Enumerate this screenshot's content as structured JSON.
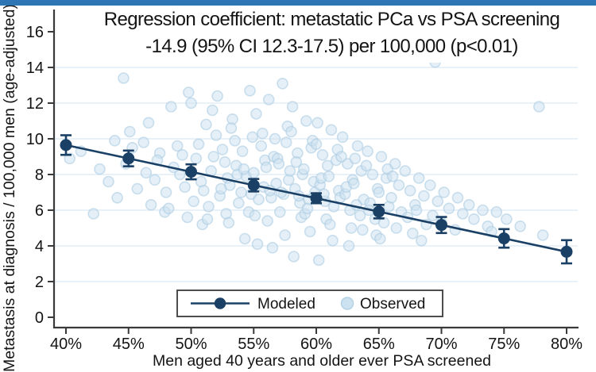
{
  "page": {
    "top_bar_color": "#2e75b6",
    "background": "#ffffff"
  },
  "title": {
    "line1": "Regression coefficient: metastatic PCa vs PSA screening",
    "line2": "-14.9 (95% CI 12.3-17.5) per 100,000 (p<0.01)"
  },
  "chart_data": {
    "type": "scatter",
    "title": "Regression coefficient: metastatic PCa vs PSA screening -14.9 (95% CI 12.3-17.5) per 100,000 (p<0.01)",
    "xlabel": "Men aged 40 years and older ever PSA screened",
    "ylabel": "Metastasis at diagnosis / 100,000 men (age-adjusted)",
    "x_tick_values": [
      40,
      45,
      50,
      55,
      60,
      65,
      70,
      75,
      80
    ],
    "x_tick_labels": [
      "40%",
      "45%",
      "50%",
      "55%",
      "60%",
      "65%",
      "70%",
      "75%",
      "80%"
    ],
    "y_ticks": [
      0,
      2,
      4,
      6,
      8,
      10,
      12,
      14,
      16
    ],
    "gridline_values": [
      2,
      4,
      6,
      8,
      10,
      12,
      14
    ],
    "xlim": [
      40,
      80
    ],
    "ylim": [
      0,
      16
    ],
    "grid": true,
    "legend": {
      "position": "bottom-center",
      "modeled_label": "Modeled",
      "observed_label": "Observed"
    },
    "colors": {
      "modeled": "#1b4065",
      "observed_fill": "#cde2f0",
      "observed_stroke": "#a6c9e0",
      "gridline": "#e4eef7",
      "axis": "#3a3a3a",
      "tick_label": "#141414"
    },
    "series": [
      {
        "name": "Modeled",
        "type": "line_with_error_bars",
        "x": [
          40,
          45,
          50,
          55,
          60,
          65,
          70,
          75,
          80
        ],
        "y": [
          9.65,
          8.9,
          8.15,
          7.4,
          6.67,
          5.92,
          5.17,
          4.42,
          3.67
        ],
        "ci_low": [
          9.1,
          8.46,
          7.73,
          7.05,
          6.39,
          5.54,
          4.72,
          3.9,
          3.02
        ],
        "ci_high": [
          10.2,
          9.34,
          8.57,
          7.75,
          6.95,
          6.3,
          5.62,
          4.94,
          4.32
        ]
      },
      {
        "name": "Observed",
        "type": "scatter",
        "points": [
          [
            40.3,
            8.9
          ],
          [
            41.2,
            9.3
          ],
          [
            42.2,
            5.8
          ],
          [
            42.7,
            8.3
          ],
          [
            43.4,
            7.6
          ],
          [
            43.9,
            9.9
          ],
          [
            44.6,
            13.4
          ],
          [
            44.1,
            6.7
          ],
          [
            44.8,
            8.6
          ],
          [
            45.3,
            9.5
          ],
          [
            45.7,
            7.2
          ],
          [
            45.1,
            10.4
          ],
          [
            46.4,
            8.1
          ],
          [
            46.8,
            6.3
          ],
          [
            46.2,
            9.8
          ],
          [
            46.6,
            10.9
          ],
          [
            47.1,
            7.7
          ],
          [
            47.5,
            9.2
          ],
          [
            47.9,
            5.9
          ],
          [
            47.3,
            8.8
          ],
          [
            48.4,
            11.8
          ],
          [
            48.0,
            7.0
          ],
          [
            48.6,
            8.4
          ],
          [
            48.9,
            9.6
          ],
          [
            48.2,
            6.1
          ],
          [
            49.8,
            12.6
          ],
          [
            49.1,
            8.0
          ],
          [
            49.5,
            7.3
          ],
          [
            49.3,
            9.1
          ],
          [
            49.7,
            5.6
          ],
          [
            50.0,
            12.0
          ],
          [
            50.4,
            8.9
          ],
          [
            50.8,
            7.6
          ],
          [
            50.2,
            6.5
          ],
          [
            50.6,
            9.7
          ],
          [
            50.9,
            5.2
          ],
          [
            51.2,
            10.8
          ],
          [
            51.6,
            8.2
          ],
          [
            51.0,
            7.1
          ],
          [
            51.8,
            9.0
          ],
          [
            51.4,
            6.2
          ],
          [
            51.7,
            11.6
          ],
          [
            51.3,
            5.5
          ],
          [
            52.1,
            12.4
          ],
          [
            52.5,
            9.4
          ],
          [
            52.9,
            7.8
          ],
          [
            52.3,
            6.8
          ],
          [
            52.7,
            8.7
          ],
          [
            52.0,
            10.2
          ],
          [
            52.8,
            5.8
          ],
          [
            52.4,
            7.2
          ],
          [
            53.3,
            11.1
          ],
          [
            53.6,
            8.5
          ],
          [
            53.1,
            7.4
          ],
          [
            53.8,
            6.4
          ],
          [
            53.5,
            9.9
          ],
          [
            53.0,
            5.3
          ],
          [
            53.7,
            8.0
          ],
          [
            53.2,
            10.6
          ],
          [
            54.7,
            12.7
          ],
          [
            54.1,
            9.3
          ],
          [
            54.4,
            7.9
          ],
          [
            54.8,
            6.9
          ],
          [
            54.2,
            8.3
          ],
          [
            54.6,
            5.9
          ],
          [
            54.0,
            7.0
          ],
          [
            54.9,
            10.1
          ],
          [
            54.3,
            4.4
          ],
          [
            55.2,
            11.4
          ],
          [
            55.6,
            9.6
          ],
          [
            55.0,
            8.1
          ],
          [
            55.8,
            7.3
          ],
          [
            55.4,
            6.6
          ],
          [
            55.7,
            10.3
          ],
          [
            55.1,
            5.7
          ],
          [
            55.9,
            8.8
          ],
          [
            55.3,
            4.1
          ],
          [
            56.2,
            12.2
          ],
          [
            56.6,
            9.0
          ],
          [
            56.0,
            8.4
          ],
          [
            56.8,
            7.5
          ],
          [
            56.4,
            6.7
          ],
          [
            56.7,
            10.0
          ],
          [
            56.1,
            5.4
          ],
          [
            56.9,
            8.9
          ],
          [
            56.3,
            7.1
          ],
          [
            56.5,
            3.9
          ],
          [
            57.3,
            13.1
          ],
          [
            57.6,
            9.8
          ],
          [
            57.0,
            8.6
          ],
          [
            57.8,
            7.7
          ],
          [
            57.4,
            6.9
          ],
          [
            57.7,
            10.7
          ],
          [
            57.1,
            5.9
          ],
          [
            57.9,
            8.2
          ],
          [
            57.2,
            7.0
          ],
          [
            57.5,
            4.6
          ],
          [
            58.1,
            11.8
          ],
          [
            58.5,
            9.2
          ],
          [
            58.9,
            8.0
          ],
          [
            58.3,
            7.2
          ],
          [
            58.7,
            6.4
          ],
          [
            58.0,
            10.4
          ],
          [
            58.8,
            5.6
          ],
          [
            58.4,
            8.7
          ],
          [
            58.6,
            6.8
          ],
          [
            58.2,
            3.4
          ],
          [
            59.2,
            11.0
          ],
          [
            59.6,
            9.5
          ],
          [
            59.0,
            8.3
          ],
          [
            59.8,
            7.6
          ],
          [
            59.4,
            6.6
          ],
          [
            59.7,
            9.9
          ],
          [
            59.1,
            5.8
          ],
          [
            59.9,
            7.0
          ],
          [
            59.3,
            6.1
          ],
          [
            59.5,
            4.8
          ],
          [
            60.1,
            10.9
          ],
          [
            60.5,
            9.1
          ],
          [
            60.9,
            8.5
          ],
          [
            60.3,
            7.4
          ],
          [
            60.7,
            6.5
          ],
          [
            60.0,
            9.7
          ],
          [
            60.8,
            5.5
          ],
          [
            60.4,
            7.8
          ],
          [
            60.6,
            6.9
          ],
          [
            60.2,
            3.2
          ],
          [
            61.2,
            10.5
          ],
          [
            61.6,
            8.8
          ],
          [
            61.0,
            7.9
          ],
          [
            61.8,
            7.1
          ],
          [
            61.4,
            6.2
          ],
          [
            61.7,
            9.4
          ],
          [
            61.1,
            5.2
          ],
          [
            61.9,
            6.7
          ],
          [
            61.3,
            4.3
          ],
          [
            62.1,
            10.1
          ],
          [
            62.5,
            8.6
          ],
          [
            62.9,
            7.7
          ],
          [
            62.3,
            6.9
          ],
          [
            62.7,
            6.0
          ],
          [
            62.0,
            9.0
          ],
          [
            62.8,
            5.0
          ],
          [
            62.4,
            7.3
          ],
          [
            62.6,
            4.0
          ],
          [
            63.3,
            9.6
          ],
          [
            63.6,
            8.2
          ],
          [
            63.0,
            7.5
          ],
          [
            63.8,
            6.6
          ],
          [
            63.5,
            5.7
          ],
          [
            63.1,
            8.9
          ],
          [
            63.7,
            4.9
          ],
          [
            63.2,
            6.3
          ],
          [
            64.1,
            9.3
          ],
          [
            64.5,
            8.0
          ],
          [
            64.9,
            7.2
          ],
          [
            64.3,
            6.4
          ],
          [
            64.7,
            5.5
          ],
          [
            64.0,
            8.5
          ],
          [
            64.8,
            4.6
          ],
          [
            64.2,
            6.0
          ],
          [
            65.2,
            9.0
          ],
          [
            65.6,
            7.8
          ],
          [
            65.0,
            7.0
          ],
          [
            65.8,
            6.2
          ],
          [
            65.4,
            5.3
          ],
          [
            65.7,
            8.3
          ],
          [
            65.1,
            4.4
          ],
          [
            66.3,
            8.6
          ],
          [
            66.6,
            7.4
          ],
          [
            66.0,
            6.7
          ],
          [
            66.8,
            5.9
          ],
          [
            66.4,
            5.0
          ],
          [
            66.1,
            7.9
          ],
          [
            67.1,
            8.2
          ],
          [
            67.5,
            7.1
          ],
          [
            67.9,
            6.3
          ],
          [
            67.3,
            5.6
          ],
          [
            67.7,
            4.7
          ],
          [
            68.2,
            7.8
          ],
          [
            68.6,
            6.8
          ],
          [
            68.0,
            6.0
          ],
          [
            68.8,
            5.2
          ],
          [
            68.4,
            4.3
          ],
          [
            69.5,
            14.3
          ],
          [
            69.1,
            7.4
          ],
          [
            69.7,
            6.5
          ],
          [
            69.3,
            5.7
          ],
          [
            70.2,
            7.0
          ],
          [
            70.6,
            6.1
          ],
          [
            70.0,
            5.3
          ],
          [
            71.3,
            6.7
          ],
          [
            71.7,
            5.8
          ],
          [
            71.1,
            4.9
          ],
          [
            72.2,
            6.3
          ],
          [
            72.6,
            5.5
          ],
          [
            73.3,
            6.0
          ],
          [
            73.7,
            5.1
          ],
          [
            74.0,
            4.8
          ],
          [
            74.4,
            5.9
          ],
          [
            75.2,
            5.5
          ],
          [
            76.3,
            5.1
          ],
          [
            77.8,
            11.8
          ],
          [
            78.1,
            4.6
          ]
        ]
      }
    ]
  }
}
